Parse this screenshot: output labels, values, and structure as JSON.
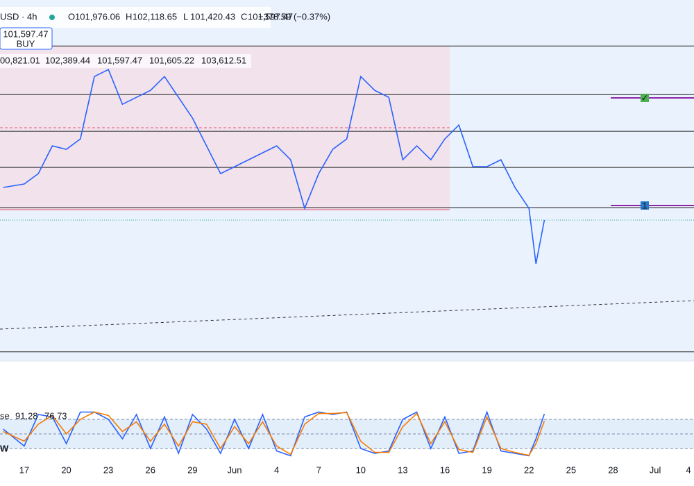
{
  "header": {
    "symbol": "USD · 4h",
    "ohlc": [
      {
        "label": "O",
        "value": "101,976.06"
      },
      {
        "label": "H",
        "value": "102,118.65"
      },
      {
        "label": "L",
        "value": "101,420.43"
      },
      {
        "label": "C",
        "value": "101,597.47"
      }
    ],
    "change": "−378.59 (−0.37%)"
  },
  "buy_button": {
    "price": "101,597.47",
    "label": "BUY"
  },
  "indicator_values": [
    {
      "text": "00,821.01",
      "color": "#7b1f6e"
    },
    {
      "text": "102,389.44",
      "color": "#c2185b"
    },
    {
      "text": "101,597.47",
      "color": "#2e7d32"
    },
    {
      "text": "101,605.22",
      "color": "#8a8a8a"
    },
    {
      "text": "103,612.51",
      "color": "#8fb3e0"
    }
  ],
  "markers": [
    {
      "text": "✓",
      "color": "#4caf50"
    },
    {
      "text": "1",
      "color": "#2979c9"
    }
  ],
  "stoch_label": {
    "name": "se",
    "k_value": "91.28",
    "d_value": "76.73"
  },
  "pane_label": "W",
  "chart_data": [
    {
      "type": "line",
      "x": [
        -1.5,
        0,
        1,
        2,
        3,
        4,
        5,
        6,
        7,
        8,
        9,
        10,
        11,
        12,
        13,
        14,
        15,
        16,
        17,
        18,
        19,
        20,
        21,
        22,
        23,
        24,
        25,
        26,
        27,
        28,
        29,
        30,
        31,
        32,
        33,
        34,
        35,
        36,
        36.5,
        37.1
      ],
      "series": [
        {
          "color": "#2962ff",
          "values": [
            102716,
            102835,
            103192,
            104144,
            104025,
            104382,
            106524,
            106762,
            105572,
            105810,
            106048,
            106524,
            105810,
            105096,
            104144,
            103192,
            103430,
            103668,
            103906,
            104144,
            103668,
            102002,
            103192,
            104025,
            104382,
            106524,
            106048,
            105810,
            103668,
            104144,
            103668,
            104382,
            104858,
            103430,
            103430,
            103668,
            102716,
            102002,
            100098,
            101597.47
          ]
        }
      ],
      "levels": [
        107571,
        105905,
        104643,
        103406,
        102025,
        97075
      ],
      "xlim": [
        -1.73,
        47.77
      ],
      "ylim": [
        96760,
        109150
      ],
      "xticks": [
        {
          "value": 0,
          "label": "17"
        },
        {
          "value": 3,
          "label": "20"
        },
        {
          "value": 6,
          "label": "23"
        },
        {
          "value": 9,
          "label": "26"
        },
        {
          "value": 12,
          "label": "29"
        },
        {
          "value": 15,
          "label": "Jun"
        },
        {
          "value": 18,
          "label": "4"
        },
        {
          "value": 21,
          "label": "7"
        },
        {
          "value": 24,
          "label": "10"
        },
        {
          "value": 27,
          "label": "13"
        },
        {
          "value": 30,
          "label": "16"
        },
        {
          "value": 33,
          "label": "19"
        },
        {
          "value": 36,
          "label": "22"
        },
        {
          "value": 39,
          "label": "25"
        },
        {
          "value": 42,
          "label": "28"
        },
        {
          "value": 45,
          "label": "Jul"
        },
        {
          "value": 48,
          "label": "4"
        }
      ]
    },
    {
      "type": "line",
      "x": [
        -1.5,
        0,
        1,
        2,
        3,
        4,
        5,
        6,
        7,
        8,
        9,
        10,
        11,
        12,
        13,
        14,
        15,
        16,
        17,
        18,
        19,
        20,
        21,
        22,
        23,
        24,
        25,
        26,
        27,
        28,
        29,
        30,
        31,
        32,
        33,
        34,
        35,
        36,
        36.5,
        37.1
      ],
      "series": [
        {
          "color": "#2962ff",
          "values": [
            60,
            25,
            90,
            85,
            30,
            95,
            95,
            80,
            40,
            90,
            20,
            85,
            10,
            90,
            60,
            10,
            80,
            20,
            90,
            15,
            5,
            85,
            95,
            90,
            95,
            20,
            10,
            15,
            80,
            95,
            20,
            85,
            10,
            15,
            95,
            15,
            10,
            5,
            40,
            91.28
          ]
        },
        {
          "color": "#f57c00",
          "values": [
            55,
            35,
            70,
            88,
            50,
            80,
            95,
            88,
            55,
            75,
            35,
            70,
            25,
            75,
            70,
            20,
            65,
            30,
            75,
            25,
            8,
            70,
            92,
            92,
            94,
            35,
            12,
            12,
            65,
            92,
            30,
            75,
            18,
            12,
            85,
            20,
            12,
            6,
            30,
            76.73
          ]
        }
      ],
      "levels": [
        80,
        50,
        20
      ],
      "xlim": [
        -1.73,
        47.77
      ],
      "ylim": [
        0,
        100
      ]
    }
  ]
}
